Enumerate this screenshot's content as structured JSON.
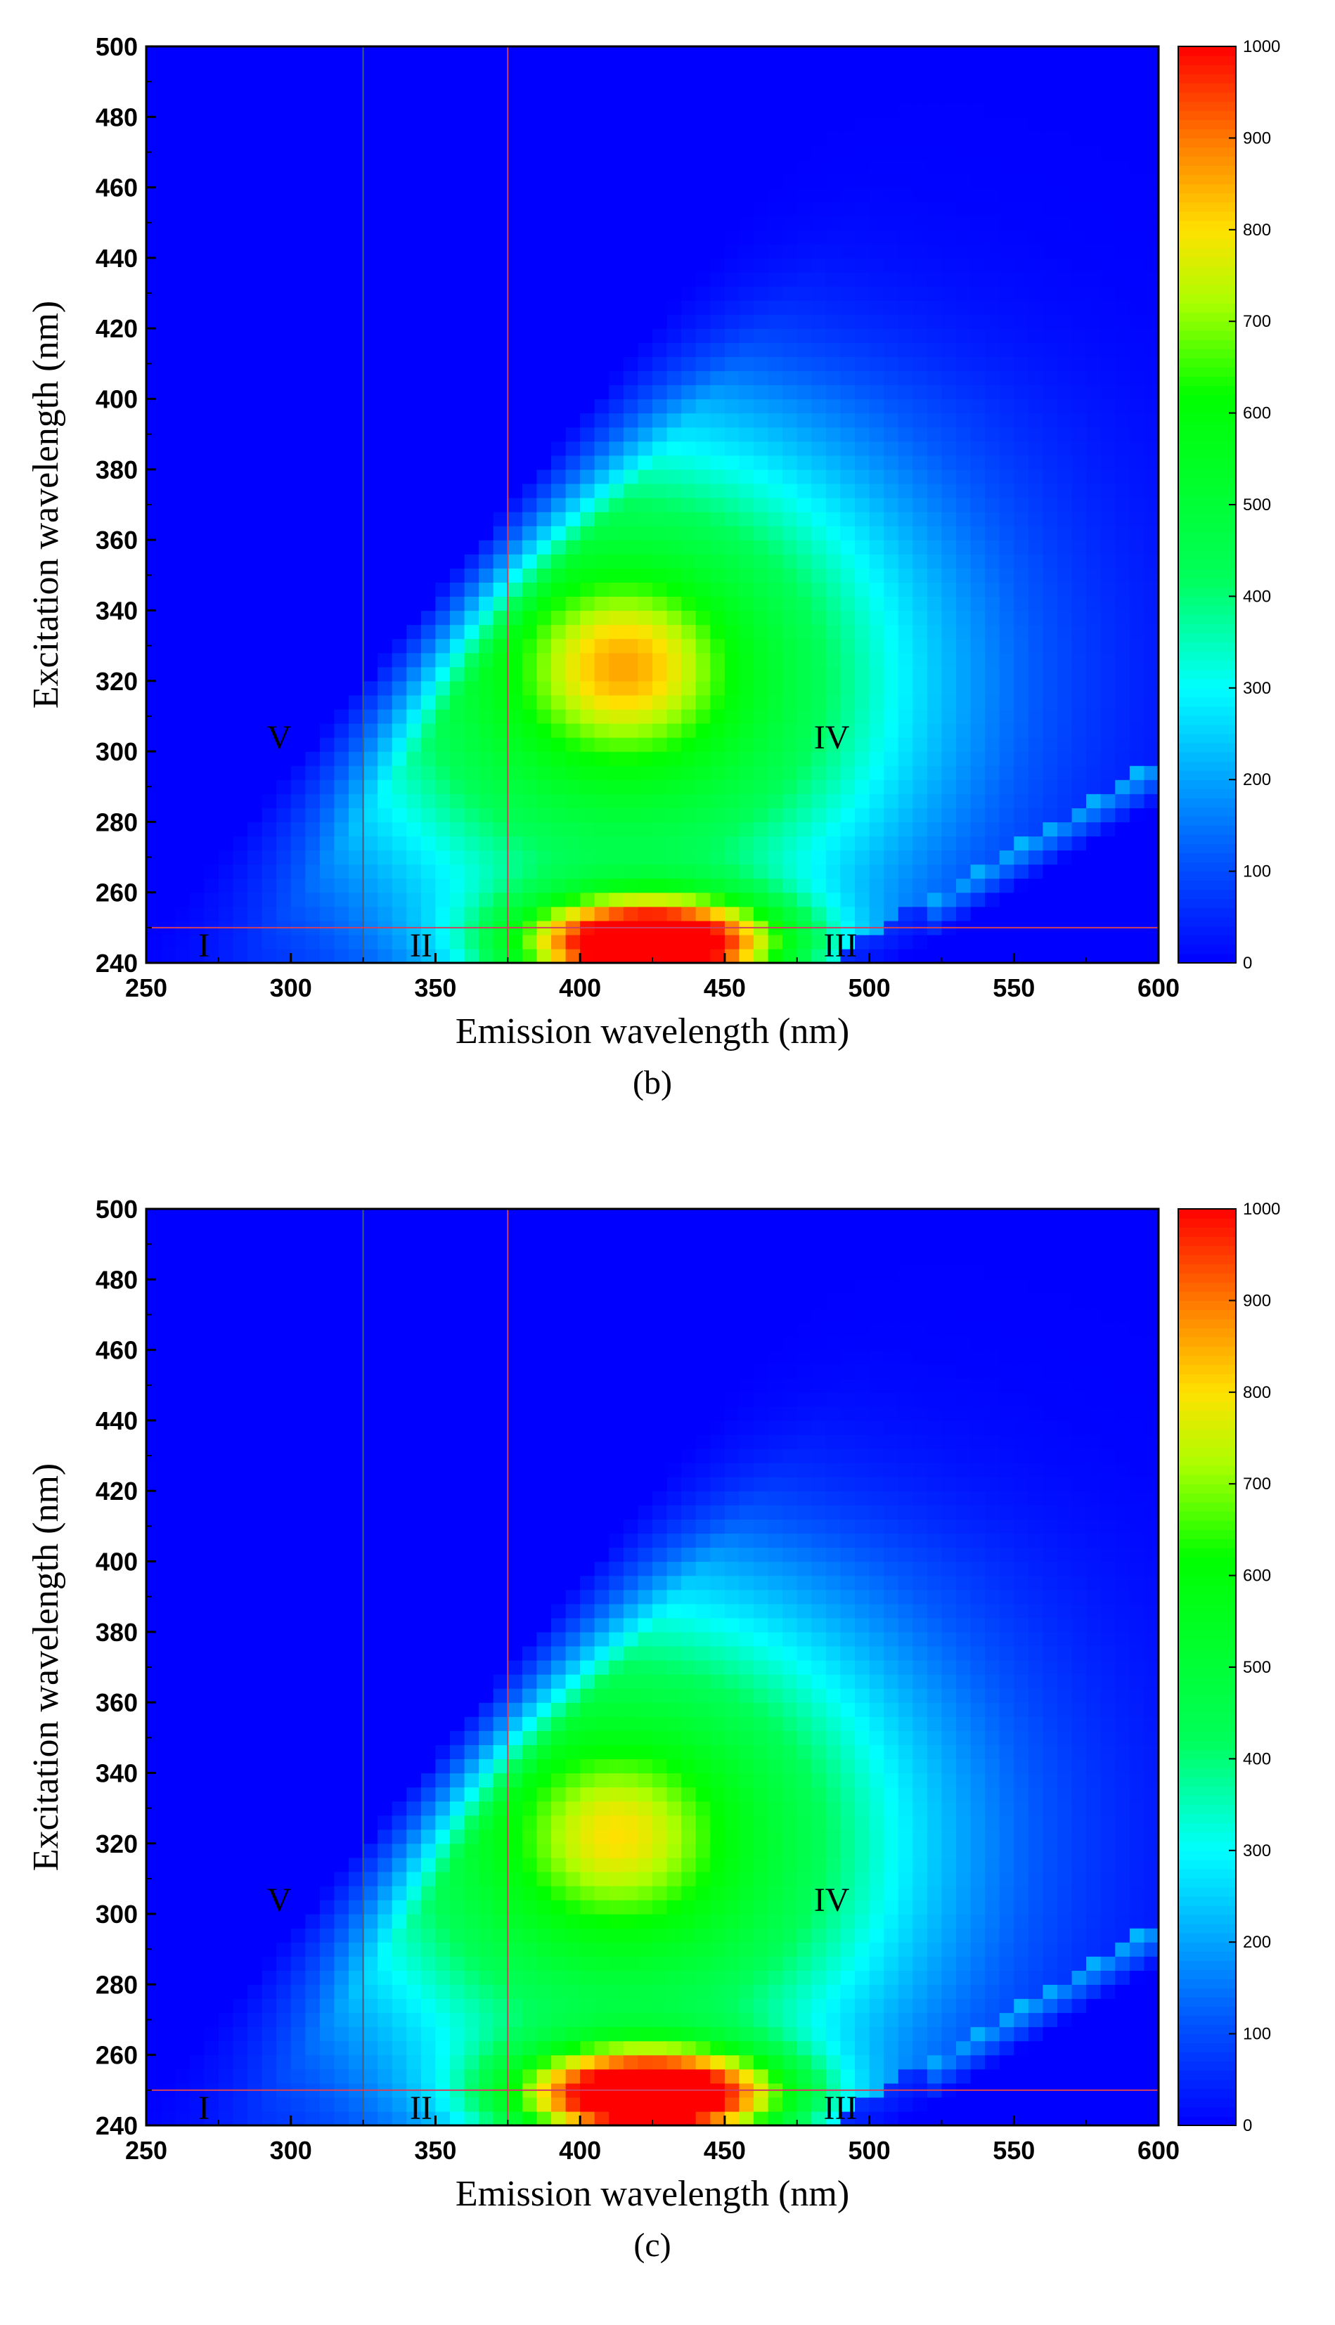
{
  "chart_data": [
    {
      "type": "heatmap",
      "panel_label": "(b)",
      "xlabel": "Emission wavelength (nm)",
      "ylabel": "Excitation wavelength (nm)",
      "xlim": [
        250,
        600
      ],
      "ylim": [
        240,
        500
      ],
      "xticks": [
        250,
        300,
        350,
        400,
        450,
        500,
        550,
        600
      ],
      "yticks": [
        240,
        260,
        280,
        300,
        320,
        340,
        360,
        380,
        400,
        420,
        440,
        460,
        480,
        500
      ],
      "colorbar": {
        "min": 0,
        "max": 1000,
        "ticks": [
          0,
          100,
          200,
          300,
          400,
          500,
          600,
          700,
          800,
          900,
          1000
        ]
      },
      "colors": {
        "low": "#0000ff",
        "mid": "#00ff00",
        "high": "#ff0000",
        "boundary_lines": "#d04060"
      },
      "region_lines": {
        "emission": [
          325,
          375
        ],
        "excitation": [
          250
        ]
      },
      "regions": [
        {
          "label": "I",
          "x": 270,
          "y": 245
        },
        {
          "label": "II",
          "x": 345,
          "y": 245
        },
        {
          "label": "III",
          "x": 490,
          "y": 245
        },
        {
          "label": "IV",
          "x": 487,
          "y": 304
        },
        {
          "label": "V",
          "x": 296,
          "y": 304
        }
      ],
      "peaks": [
        {
          "emission": 415,
          "excitation": 325,
          "intensity": 800
        },
        {
          "emission": 425,
          "excitation": 245,
          "intensity": 1000
        }
      ],
      "grid": false
    },
    {
      "type": "heatmap",
      "panel_label": "(c)",
      "xlabel": "Emission wavelength (nm)",
      "ylabel": "Excitation wavelength (nm)",
      "xlim": [
        250,
        600
      ],
      "ylim": [
        240,
        500
      ],
      "xticks": [
        250,
        300,
        350,
        400,
        450,
        500,
        550,
        600
      ],
      "yticks": [
        240,
        260,
        280,
        300,
        320,
        340,
        360,
        380,
        400,
        420,
        440,
        460,
        480,
        500
      ],
      "colorbar": {
        "min": 0,
        "max": 1000,
        "ticks": [
          0,
          100,
          200,
          300,
          400,
          500,
          600,
          700,
          800,
          900,
          1000
        ]
      },
      "colors": {
        "low": "#0000ff",
        "mid": "#00ff00",
        "high": "#ff0000",
        "boundary_lines": "#d04060"
      },
      "region_lines": {
        "emission": [
          325,
          375
        ],
        "excitation": [
          250
        ]
      },
      "regions": [
        {
          "label": "I",
          "x": 270,
          "y": 245
        },
        {
          "label": "II",
          "x": 345,
          "y": 245
        },
        {
          "label": "III",
          "x": 490,
          "y": 245
        },
        {
          "label": "IV",
          "x": 487,
          "y": 304
        },
        {
          "label": "V",
          "x": 296,
          "y": 304
        }
      ],
      "peaks": [
        {
          "emission": 412,
          "excitation": 323,
          "intensity": 740
        },
        {
          "emission": 425,
          "excitation": 248,
          "intensity": 1000
        }
      ],
      "grid": false
    }
  ]
}
